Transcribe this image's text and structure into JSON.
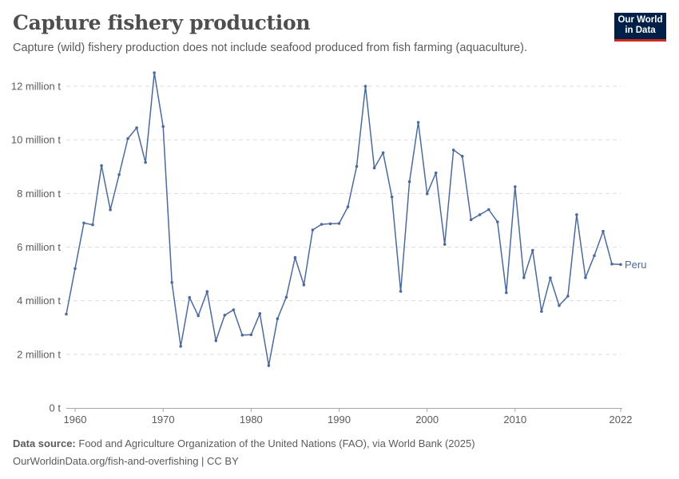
{
  "header": {
    "title": "Capture fishery production",
    "subtitle": "Capture (wild) fishery production does not include seafood produced from fish farming (aquaculture).",
    "logo_line1": "Our World",
    "logo_line2": "in Data"
  },
  "footer": {
    "source_label": "Data source:",
    "source_text": "Food and Agriculture Organization of the United Nations (FAO), via World Bank (2025)",
    "url": "OurWorldinData.org/fish-and-overfishing | CC BY"
  },
  "colors": {
    "series": "#4c6a9c",
    "grid": "#dddddd",
    "text": "#5b5b5b"
  },
  "chart_data": {
    "type": "line",
    "title": "Capture fishery production",
    "xlabel": "",
    "ylabel": "",
    "xlim": [
      1959,
      2022
    ],
    "ylim": [
      0,
      12000000
    ],
    "x_ticks": [
      {
        "value": 1960,
        "label": "1960"
      },
      {
        "value": 1970,
        "label": "1970"
      },
      {
        "value": 1980,
        "label": "1980"
      },
      {
        "value": 1990,
        "label": "1990"
      },
      {
        "value": 2000,
        "label": "2000"
      },
      {
        "value": 2010,
        "label": "2010"
      },
      {
        "value": 2022,
        "label": "2022"
      }
    ],
    "y_ticks": [
      {
        "value": 0,
        "label": "0 t"
      },
      {
        "value": 2000000,
        "label": "2 million t"
      },
      {
        "value": 4000000,
        "label": "4 million t"
      },
      {
        "value": 6000000,
        "label": "6 million t"
      },
      {
        "value": 8000000,
        "label": "8 million t"
      },
      {
        "value": 10000000,
        "label": "10 million t"
      },
      {
        "value": 12000000,
        "label": "12 million t"
      }
    ],
    "grid": true,
    "legend": "end-of-line label",
    "series": [
      {
        "name": "Peru",
        "x": [
          1959,
          1960,
          1961,
          1962,
          1963,
          1964,
          1965,
          1966,
          1967,
          1968,
          1969,
          1970,
          1971,
          1972,
          1973,
          1974,
          1975,
          1976,
          1977,
          1978,
          1979,
          1980,
          1981,
          1982,
          1983,
          1984,
          1985,
          1986,
          1987,
          1988,
          1989,
          1990,
          1991,
          1992,
          1993,
          1994,
          1995,
          1996,
          1997,
          1998,
          1999,
          2000,
          2001,
          2002,
          2003,
          2004,
          2005,
          2006,
          2007,
          2008,
          2009,
          2010,
          2011,
          2012,
          2013,
          2014,
          2015,
          2016,
          2017,
          2018,
          2019,
          2020,
          2021,
          2022
        ],
        "values": [
          3500000,
          5200000,
          6900000,
          6830000,
          9040000,
          7390000,
          8700000,
          10050000,
          10450000,
          9160000,
          12500000,
          10500000,
          4680000,
          2300000,
          4120000,
          3440000,
          4340000,
          2510000,
          3460000,
          3660000,
          2720000,
          2730000,
          3520000,
          1580000,
          3330000,
          4130000,
          5610000,
          4590000,
          6640000,
          6850000,
          6870000,
          6880000,
          7500000,
          9010000,
          12000000,
          8950000,
          9520000,
          7870000,
          4350000,
          8440000,
          10650000,
          7990000,
          8770000,
          6100000,
          9620000,
          9390000,
          7020000,
          7210000,
          7400000,
          6940000,
          4300000,
          8250000,
          4860000,
          5880000,
          3600000,
          4850000,
          3820000,
          4170000,
          7210000,
          4860000,
          5680000,
          6590000,
          5370000,
          5350000
        ]
      }
    ]
  }
}
